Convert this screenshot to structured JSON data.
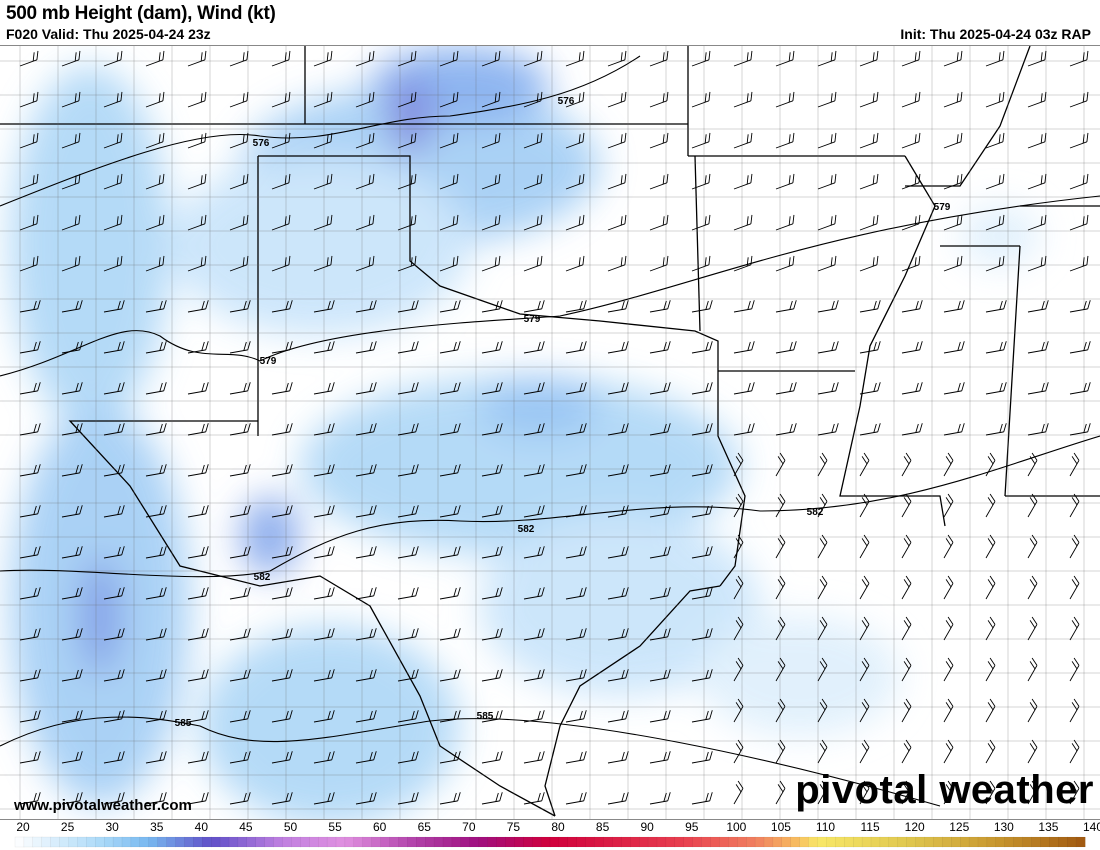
{
  "header": {
    "title": "500 mb Height (dam), Wind (kt)",
    "valid": "F020 Valid: Thu 2025-04-24 23z",
    "init": "Init: Thu 2025-04-24 03z RAP"
  },
  "footer": {
    "website": "www.pivotalweather.com",
    "brand": "pivotal weather"
  },
  "contours": [
    {
      "label": "576"
    },
    {
      "label": "576"
    },
    {
      "label": "579"
    },
    {
      "label": "579"
    },
    {
      "label": "579"
    },
    {
      "label": "582"
    },
    {
      "label": "582"
    },
    {
      "label": "582"
    },
    {
      "label": "585"
    },
    {
      "label": "585"
    }
  ],
  "colorbar": {
    "unit": "kt",
    "ticks": [
      "20",
      "25",
      "30",
      "35",
      "40",
      "45",
      "50",
      "55",
      "60",
      "65",
      "70",
      "75",
      "80",
      "85",
      "90",
      "95",
      "100",
      "105",
      "110",
      "115",
      "120",
      "125",
      "130",
      "135",
      "140"
    ],
    "stops": [
      {
        "v": 20,
        "c": "#ffffff"
      },
      {
        "v": 30,
        "c": "#a8d8f8"
      },
      {
        "v": 35,
        "c": "#78b8f0"
      },
      {
        "v": 42,
        "c": "#6050c8"
      },
      {
        "v": 50,
        "c": "#c080e0"
      },
      {
        "v": 57,
        "c": "#e090e0"
      },
      {
        "v": 65,
        "c": "#b040a8"
      },
      {
        "v": 72,
        "c": "#a01080"
      },
      {
        "v": 80,
        "c": "#d0003c"
      },
      {
        "v": 95,
        "c": "#e84050"
      },
      {
        "v": 103,
        "c": "#f08060"
      },
      {
        "v": 108,
        "c": "#f8c060"
      },
      {
        "v": 110,
        "c": "#f8e868"
      },
      {
        "v": 120,
        "c": "#e0c850"
      },
      {
        "v": 130,
        "c": "#c89830"
      },
      {
        "v": 140,
        "c": "#a05810"
      }
    ]
  }
}
